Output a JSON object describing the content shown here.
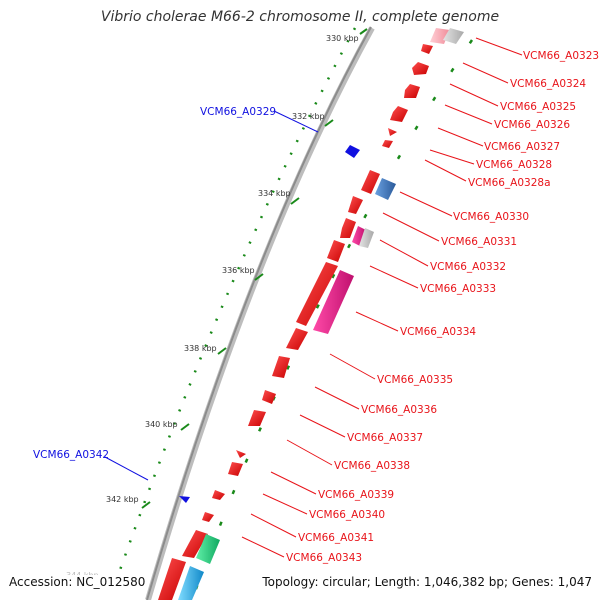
{
  "title": "Vibrio cholerae M66-2 chromosome II, complete genome",
  "footer": {
    "accession": "Accession: NC_012580",
    "info": "Topology: circular; Length: 1,046,382 bp; Genes: 1,047"
  },
  "ticks": [
    {
      "label": "330 kbp"
    },
    {
      "label": "332 kbp"
    },
    {
      "label": "334 kbp"
    },
    {
      "label": "336 kbp"
    },
    {
      "label": "338 kbp"
    },
    {
      "label": "340 kbp"
    },
    {
      "label": "342 kbp"
    },
    {
      "label": "344 kbp"
    }
  ],
  "genes_forward": [
    {
      "label": "VCM66_A0323",
      "color": "#e8141a"
    },
    {
      "label": "VCM66_A0324",
      "color": "#e8141a"
    },
    {
      "label": "VCM66_A0325",
      "color": "#e8141a"
    },
    {
      "label": "VCM66_A0326",
      "color": "#e8141a"
    },
    {
      "label": "VCM66_A0327",
      "color": "#e8141a"
    },
    {
      "label": "VCM66_A0328",
      "color": "#e8141a"
    },
    {
      "label": "VCM66_A0328a",
      "color": "#e8141a"
    },
    {
      "label": "VCM66_A0330",
      "color": "#e8141a"
    },
    {
      "label": "VCM66_A0331",
      "color": "#e8141a"
    },
    {
      "label": "VCM66_A0332",
      "color": "#e8141a"
    },
    {
      "label": "VCM66_A0333",
      "color": "#e8141a"
    },
    {
      "label": "VCM66_A0334",
      "color": "#e8141a"
    },
    {
      "label": "VCM66_A0335",
      "color": "#e8141a"
    },
    {
      "label": "VCM66_A0336",
      "color": "#e8141a"
    },
    {
      "label": "VCM66_A0337",
      "color": "#e8141a"
    },
    {
      "label": "VCM66_A0338",
      "color": "#e8141a"
    },
    {
      "label": "VCM66_A0339",
      "color": "#e8141a"
    },
    {
      "label": "VCM66_A0340",
      "color": "#e8141a"
    },
    {
      "label": "VCM66_A0341",
      "color": "#e8141a"
    },
    {
      "label": "VCM66_A0343",
      "color": "#e8141a"
    }
  ],
  "genes_reverse": [
    {
      "label": "VCM66_A0329",
      "color": "#1010e0"
    },
    {
      "label": "VCM66_A0342",
      "color": "#1010e0"
    }
  ],
  "colors": {
    "forward_gene": "#e8141a",
    "reverse_gene": "#1010e0",
    "backbone": "#999999",
    "feature_grey": "#c8c8c8",
    "feature_blue": "#4a7fc0",
    "feature_magenta": "#e2198a",
    "feature_pink": "#f0a0a8",
    "feature_green": "#18d67a",
    "feature_cyan": "#1cb4e8",
    "gc_dots": "#1a8a1a"
  }
}
